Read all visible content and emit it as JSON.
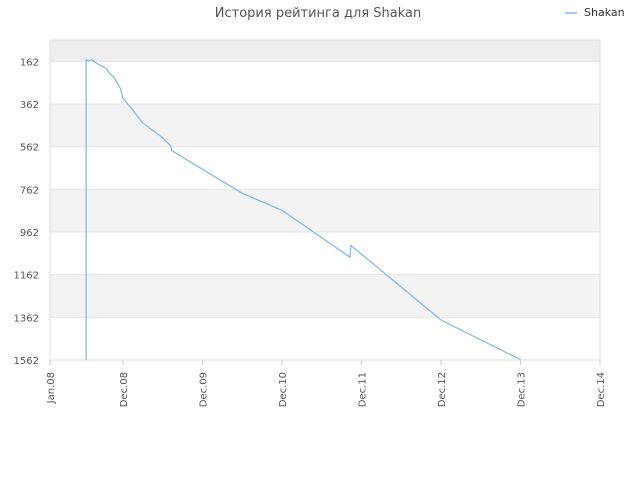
{
  "chart_data": {
    "type": "line",
    "title": "История рейтинга для Shakan",
    "xlabel": "",
    "ylabel": "",
    "x_tick_labels": [
      "Jan.08",
      "Dec.08",
      "Dec.09",
      "Dec.10",
      "Dec.11",
      "Dec.12",
      "Dec.13",
      "Dec.14"
    ],
    "y_tick_labels": [
      "162",
      "362",
      "562",
      "762",
      "962",
      "1162",
      "1362",
      "1562"
    ],
    "y_range": [
      1562,
      62
    ],
    "y_axis_inverted": true,
    "grid": true,
    "legend_position": "top-right",
    "series": [
      {
        "name": "Shakan",
        "color": "#7cb5ec",
        "points": [
          [
            "2008-06-15",
            1562
          ],
          [
            "2008-06-15",
            155
          ],
          [
            "2008-06-25",
            160
          ],
          [
            "2008-07-10",
            155
          ],
          [
            "2008-08-10",
            175
          ],
          [
            "2008-09-15",
            195
          ],
          [
            "2008-10-01",
            220
          ],
          [
            "2008-10-20",
            235
          ],
          [
            "2008-11-20",
            290
          ],
          [
            "2008-12-01",
            335
          ],
          [
            "2009-01-15",
            390
          ],
          [
            "2009-03-01",
            450
          ],
          [
            "2009-06-01",
            520
          ],
          [
            "2009-07-10",
            560
          ],
          [
            "2009-07-12",
            580
          ],
          [
            "2010-06-01",
            780
          ],
          [
            "2010-12-01",
            860
          ],
          [
            "2011-10-10",
            1080
          ],
          [
            "2011-10-14",
            1025
          ],
          [
            "2012-12-01",
            1375
          ],
          [
            "2013-12-01",
            1560
          ]
        ]
      }
    ]
  }
}
